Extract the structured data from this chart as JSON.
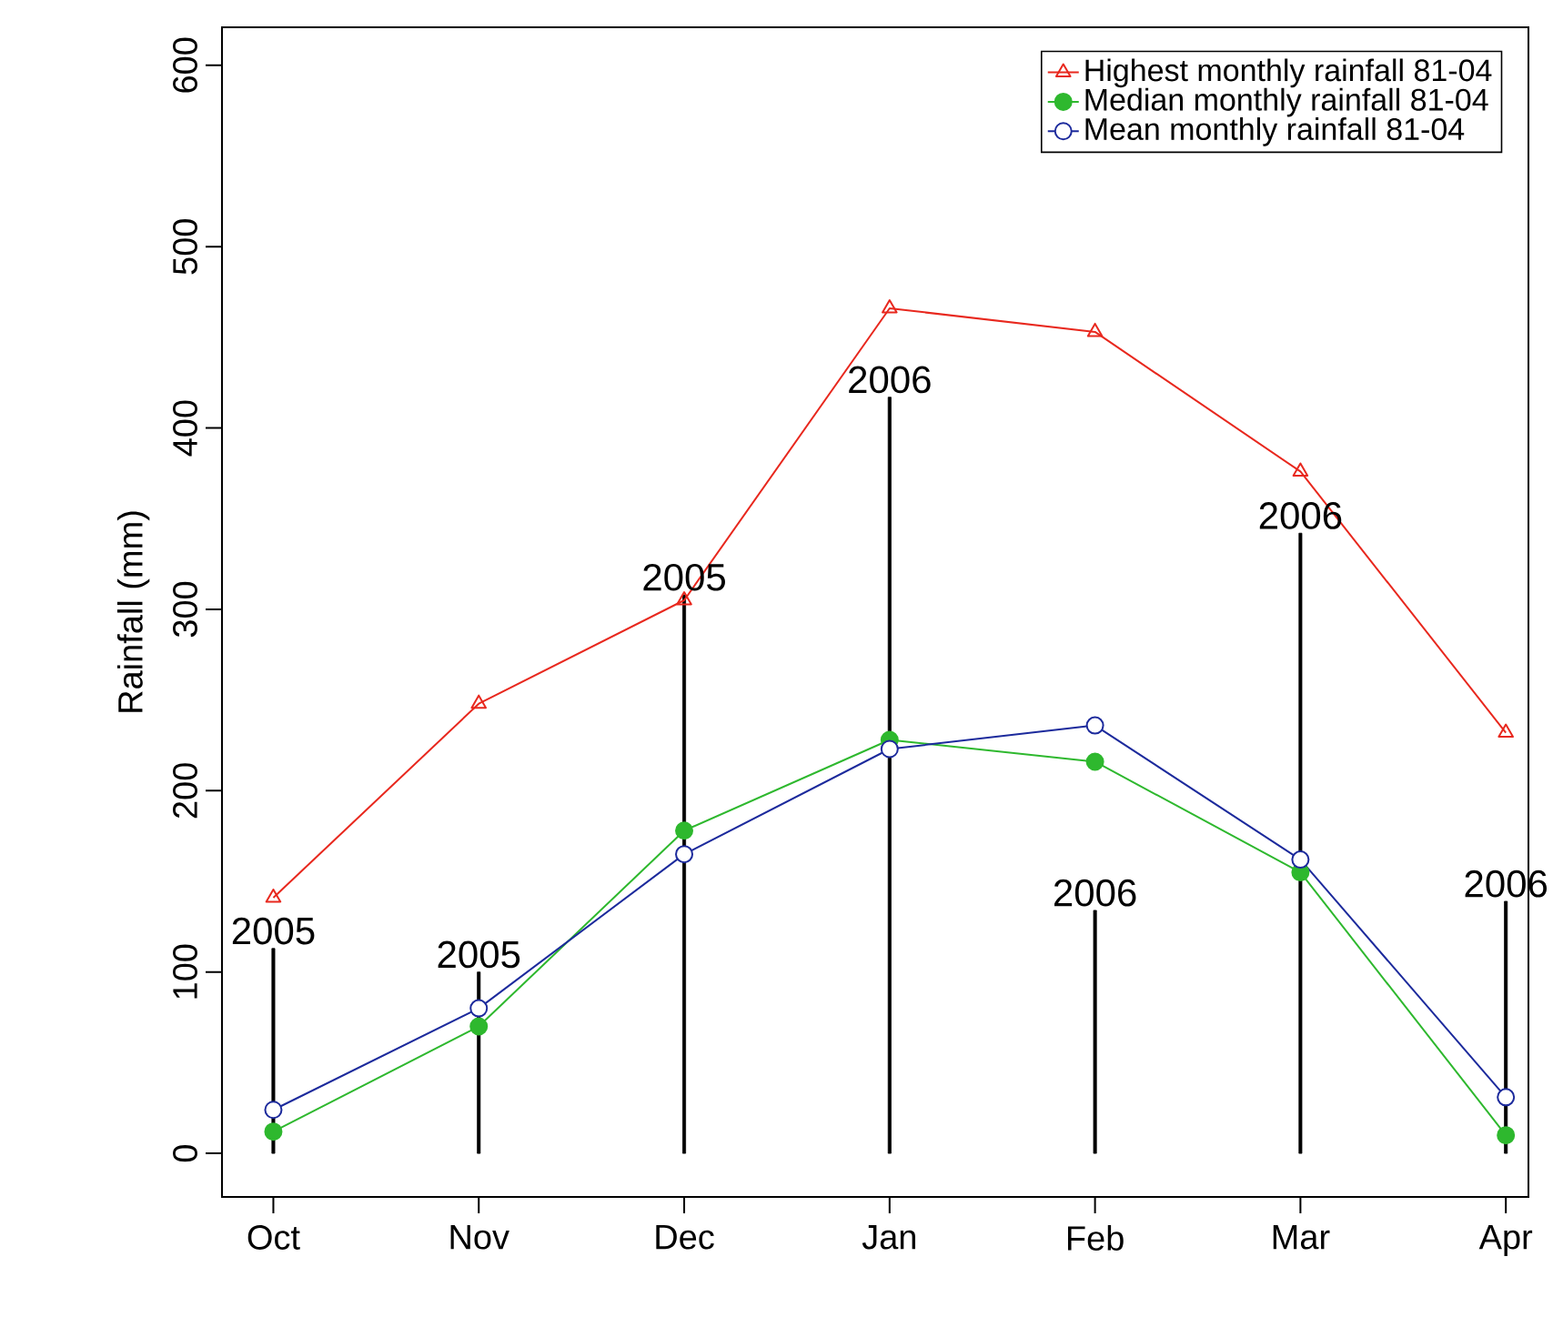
{
  "chart_data": {
    "type": "line",
    "ylabel": "Rainfall (mm)",
    "categories": [
      "Oct",
      "Nov",
      "Dec",
      "Jan",
      "Feb",
      "Mar",
      "Apr"
    ],
    "series": [
      {
        "type": "bar",
        "color": "#000000",
        "values": [
          113,
          100,
          308,
          417,
          134,
          342,
          139
        ]
      },
      {
        "name": "Highest monthly rainfall 81-04",
        "color": "#e8281e",
        "marker": "triangle",
        "values": [
          141,
          248,
          305,
          466,
          453,
          376,
          232
        ]
      },
      {
        "name": "Median monthly rainfall 81-04",
        "color": "#2eb82e",
        "marker": "circle",
        "values": [
          12,
          70,
          178,
          228,
          216,
          155,
          10
        ]
      },
      {
        "name": "Mean monthly rainfall 81-04",
        "color": "#1c2a9c",
        "marker": "circle",
        "values": [
          24,
          80,
          165,
          223,
          236,
          162,
          31
        ]
      }
    ],
    "ylim": [
      -24,
      621
    ],
    "yticks": [
      0,
      100,
      200,
      300,
      400,
      500,
      600
    ],
    "annotations": [
      {
        "text": "2005",
        "x": "Oct",
        "y": 113
      },
      {
        "text": "2005",
        "x": "Nov",
        "y": 100
      },
      {
        "text": "2005",
        "x": "Dec",
        "y": 308
      },
      {
        "text": "2006",
        "x": "Jan",
        "y": 417
      },
      {
        "text": "2006",
        "x": "Feb",
        "y": 134
      },
      {
        "text": "2006",
        "x": "Mar",
        "y": 342
      },
      {
        "text": "2006",
        "x": "Apr",
        "y": 139
      }
    ],
    "legend": "top right",
    "grid": false
  }
}
